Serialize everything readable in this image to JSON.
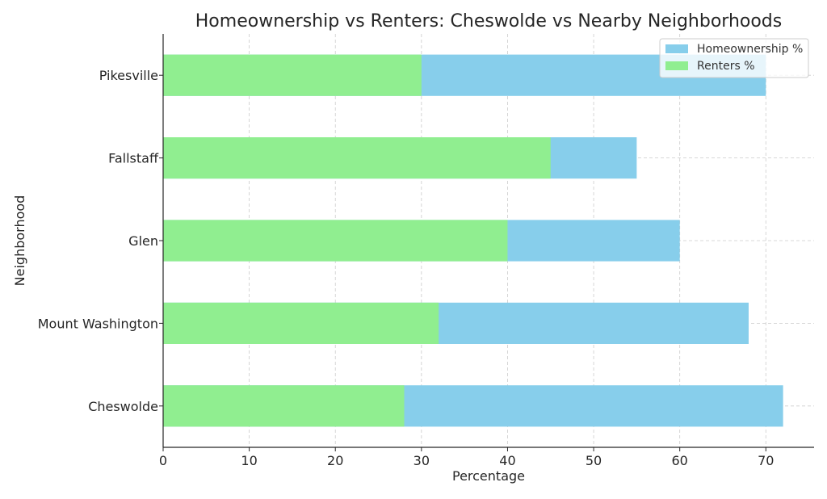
{
  "chart_data": {
    "type": "bar",
    "orientation": "horizontal",
    "stacked": false,
    "title": "Homeownership vs Renters: Cheswolde vs Nearby Neighborhoods",
    "xlabel": "Percentage",
    "ylabel": "Neighborhood",
    "categories": [
      "Cheswolde",
      "Mount Washington",
      "Glen",
      "Fallstaff",
      "Pikesville"
    ],
    "x_ticks": [
      "0",
      "10",
      "20",
      "30",
      "40",
      "50",
      "60",
      "70"
    ],
    "xlim": [
      0,
      75.6
    ],
    "grid": true,
    "legend_position": "top-right",
    "series": [
      {
        "name": "Homeownership %",
        "color": "#87CEEB",
        "values": [
          72,
          68,
          60,
          55,
          70
        ]
      },
      {
        "name": "Renters %",
        "color": "#90EE90",
        "values": [
          28,
          32,
          40,
          45,
          30
        ]
      }
    ]
  }
}
